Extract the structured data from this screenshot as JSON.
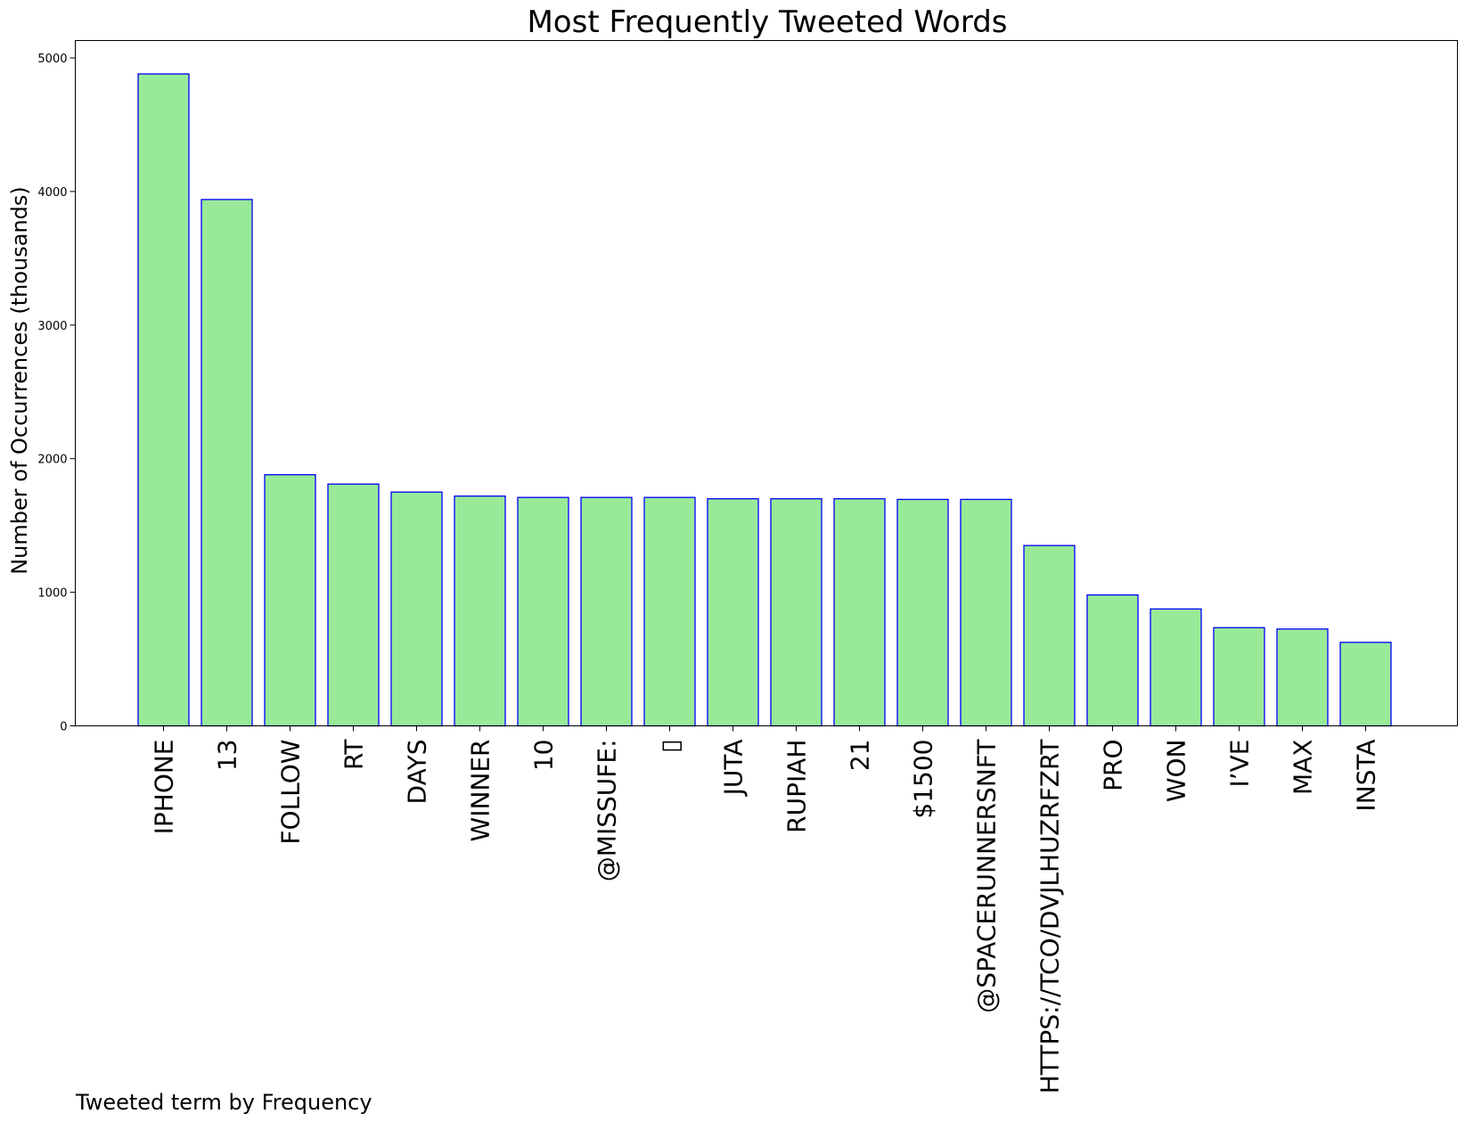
{
  "chart_data": {
    "type": "bar",
    "title": "Most Frequently Tweeted Words",
    "xlabel": "Tweeted term by Frequency",
    "ylabel": "Number of Occurrences (thousands)",
    "ylim": [
      0,
      5130
    ],
    "yticks": [
      0,
      1000,
      2000,
      3000,
      4000,
      5000
    ],
    "grid": false,
    "categories": [
      "IPHONE",
      "13",
      "FOLLOW",
      "RT",
      "DAYS",
      "WINNER",
      "10",
      "@MISSUFE:",
      "▯",
      "JUTA",
      "RUPIAH",
      "21",
      "$1500",
      "@SPACERUNNERSNFT",
      "HTTPS://TCO/DVJLHUZRFZRT",
      "PRO",
      "WON",
      "I’VE",
      "MAX",
      "INSTA"
    ],
    "values": [
      4880,
      3940,
      1880,
      1810,
      1750,
      1720,
      1710,
      1710,
      1710,
      1700,
      1700,
      1700,
      1695,
      1695,
      1350,
      980,
      875,
      735,
      725,
      625
    ],
    "bar_fill": "#99ea98",
    "bar_edge": "#0000ff"
  }
}
